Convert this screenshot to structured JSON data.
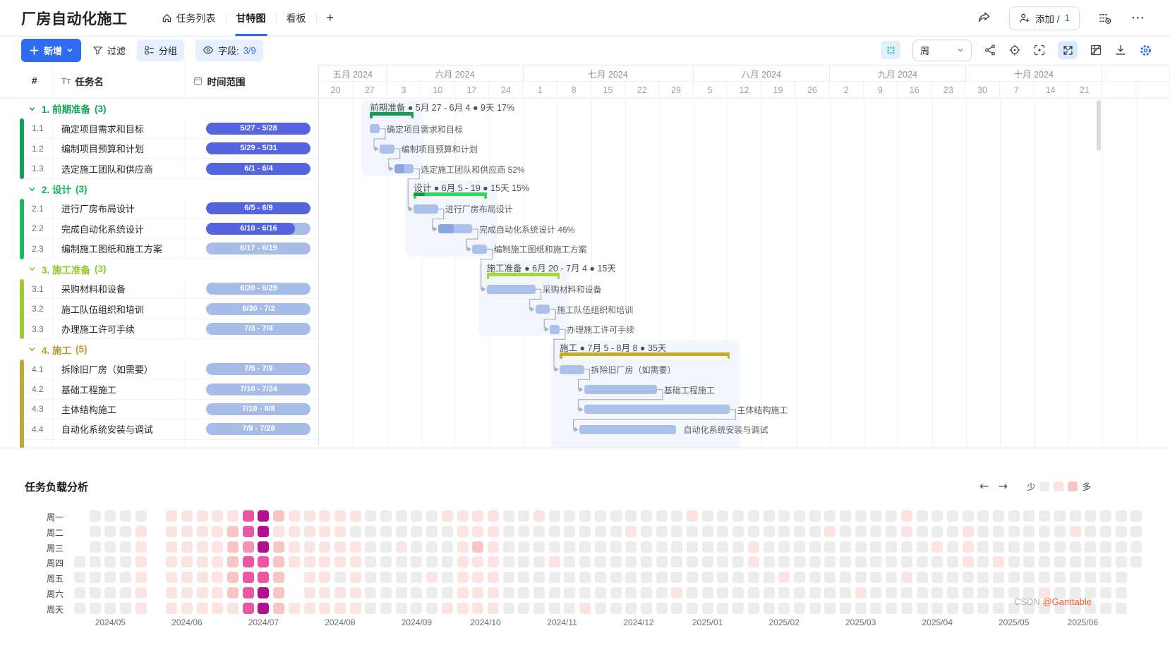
{
  "header": {
    "title": "厂房自动化施工",
    "tabs": [
      {
        "label": "任务列表"
      },
      {
        "label": "甘特图"
      },
      {
        "label": "看板"
      }
    ],
    "add_tab": "+",
    "invite_prefix": "添加 /",
    "invite_count": "1",
    "more": "⋯"
  },
  "toolbar": {
    "new_label": "新增",
    "filter_label": "过滤",
    "group_label": "分组",
    "fields_label": "字段:",
    "fields_value": "3/9",
    "view_value": "周"
  },
  "table": {
    "columns": [
      "#",
      "任务名",
      "时间范围"
    ]
  },
  "gantt": {
    "timeline": {
      "months": [
        {
          "label": "五月 2024",
          "weeks": [
            "20",
            "27"
          ]
        },
        {
          "label": "六月 2024",
          "weeks": [
            "3",
            "10",
            "17",
            "24"
          ]
        },
        {
          "label": "七月 2024",
          "weeks": [
            "1",
            "8",
            "15",
            "22",
            "29"
          ]
        },
        {
          "label": "八月 2024",
          "weeks": [
            "5",
            "12",
            "19",
            "26"
          ]
        },
        {
          "label": "九月 2024",
          "weeks": [
            "2",
            "9",
            "16",
            "23"
          ]
        },
        {
          "label": "十月 2024",
          "weeks": [
            "30",
            "7",
            "14",
            "21"
          ]
        },
        {
          "label": "",
          "weeks": [
            "",
            ""
          ]
        }
      ]
    },
    "groups": [
      {
        "num_name": "1. 前期准备",
        "count": "(3)",
        "title_color": "#11a155",
        "strip_color": "#0fa156",
        "bracket_color": "#0fa156",
        "bracket_head": "",
        "head_pct": 0,
        "summary_label": "前期准备 ● 5月 27 - 6月 4 ● 9天 17%",
        "start": 7,
        "end": 15,
        "extra_rows": 0,
        "rows": [
          {
            "id": "1.1",
            "name": "确定项目需求和目标",
            "range": "5/27 - 5/28",
            "pill_pct": 100,
            "start": 7,
            "end": 8,
            "progress": 0,
            "chart_label": "确定项目需求和目标"
          },
          {
            "id": "1.2",
            "name": "编制项目预算和计划",
            "range": "5/29 - 5/31",
            "pill_pct": 100,
            "start": 9,
            "end": 11,
            "progress": 0,
            "chart_label": "编制项目预算和计划"
          },
          {
            "id": "1.3",
            "name": "选定施工团队和供应商",
            "range": "6/1 - 6/4",
            "pill_pct": 100,
            "start": 12,
            "end": 15,
            "progress": 52,
            "chart_label": "选定施工团队和供应商 52%"
          }
        ]
      },
      {
        "num_name": "2. 设计",
        "count": "(3)",
        "title_color": "#12b457",
        "strip_color": "#16bb5b",
        "bracket_color": "#2bd957",
        "bracket_head": "#0b9e43",
        "head_pct": 15,
        "summary_label": "设计 ● 6月 5 - 19 ● 15天 15%",
        "start": 16,
        "end": 30,
        "extra_rows": 0,
        "rows": [
          {
            "id": "2.1",
            "name": "进行厂房布局设计",
            "range": "6/5 - 6/9",
            "pill_pct": 100,
            "start": 16,
            "end": 20,
            "progress": 0,
            "chart_label": "进行厂房布局设计"
          },
          {
            "id": "2.2",
            "name": "完成自动化系统设计",
            "range": "6/10 - 6/16",
            "pill_pct": 85,
            "start": 21,
            "end": 27,
            "progress": 46,
            "chart_label": "完成自动化系统设计 46%"
          },
          {
            "id": "2.3",
            "name": "编制施工图纸和施工方案",
            "range": "6/17 - 6/19",
            "pill_pct": 0,
            "start": 28,
            "end": 30,
            "progress": 0,
            "chart_label": "编制施工图纸和施工方案"
          }
        ]
      },
      {
        "num_name": "3. 施工准备",
        "count": "(3)",
        "title_color": "#8fc727",
        "strip_color": "#9ccb31",
        "bracket_color": "#a6d832",
        "bracket_head": "",
        "head_pct": 0,
        "summary_label": "施工准备 ● 6月 20 - 7月 4 ● 15天",
        "start": 31,
        "end": 45,
        "extra_rows": 0,
        "rows": [
          {
            "id": "3.1",
            "name": "采购材料和设备",
            "range": "6/20 - 6/29",
            "pill_pct": 0,
            "start": 31,
            "end": 40,
            "progress": 0,
            "chart_label": "采购材料和设备"
          },
          {
            "id": "3.2",
            "name": "施工队伍组织和培训",
            "range": "6/30 - 7/2",
            "pill_pct": 0,
            "start": 41,
            "end": 43,
            "progress": 0,
            "chart_label": "施工队伍组织和培训"
          },
          {
            "id": "3.3",
            "name": "办理施工许可手续",
            "range": "7/3 - 7/4",
            "pill_pct": 0,
            "start": 44,
            "end": 45,
            "progress": 0,
            "chart_label": "办理施工许可手续"
          }
        ]
      },
      {
        "num_name": "4. 施工",
        "count": "(5)",
        "title_color": "#b3992e",
        "strip_color": "#c0a739",
        "bracket_color": "#c9ac25",
        "bracket_head": "",
        "head_pct": 0,
        "summary_label": "施工 ● 7月 5 - 8月 8 ● 35天",
        "start": 46,
        "end": 80,
        "extra_rows": 1,
        "rows": [
          {
            "id": "4.1",
            "name": "拆除旧厂房（如需要）",
            "range": "7/5 - 7/9",
            "pill_pct": 0,
            "start": 46,
            "end": 50,
            "progress": 0,
            "chart_label": "拆除旧厂房（如需要）"
          },
          {
            "id": "4.2",
            "name": "基础工程施工",
            "range": "7/10 - 7/24",
            "pill_pct": 0,
            "start": 51,
            "end": 65,
            "progress": 0,
            "chart_label": "基础工程施工"
          },
          {
            "id": "4.3",
            "name": "主体结构施工",
            "range": "7/10 - 8/8",
            "pill_pct": 0,
            "start": 51,
            "end": 80,
            "progress": 0,
            "chart_label": "主体结构施工"
          },
          {
            "id": "4.4",
            "name": "自动化系统安装与调试",
            "range": "7/9 - 7/28",
            "pill_pct": 0,
            "start": 50,
            "end": 69,
            "progress": 0,
            "chart_label": "自动化系统安装与调试"
          }
        ]
      }
    ]
  },
  "load_panel": {
    "title": "任务负载分析",
    "legend_less": "少",
    "legend_more": "多",
    "legend_colors": [
      "#ececec",
      "#fce4e2",
      "#f9c5c4"
    ],
    "weekdays": [
      "周一",
      "周二",
      "周三",
      "周四",
      "周五",
      "周六",
      "周天"
    ],
    "months": [
      {
        "label": "2024/05",
        "col": 2
      },
      {
        "label": "2024/06",
        "col": 7
      },
      {
        "label": "2024/07",
        "col": 12
      },
      {
        "label": "2024/08",
        "col": 17
      },
      {
        "label": "2024/09",
        "col": 22
      },
      {
        "label": "2024/10",
        "col": 26.5
      },
      {
        "label": "2024/11",
        "col": 31.5
      },
      {
        "label": "2024/12",
        "col": 36.5
      },
      {
        "label": "2025/01",
        "col": 41
      },
      {
        "label": "2025/02",
        "col": 46
      },
      {
        "label": "2025/03",
        "col": 51
      },
      {
        "label": "2025/04",
        "col": 56
      },
      {
        "label": "2025/05",
        "col": 61
      },
      {
        "label": "2025/06",
        "col": 65.5
      }
    ],
    "palette": [
      "",
      "#ececec",
      "#fce4e2",
      "#f9c5c4",
      "#f693b5",
      "#ec57a2",
      "#b01190"
    ],
    "weeks": [
      "0001111",
      "1111111",
      "1111111",
      "1111111",
      "1222222",
      "0000000",
      "2222222",
      "2222222",
      "2222222",
      "2222222",
      "2333332",
      "5545555",
      "6665566",
      "3233333",
      "2222002",
      "2222222",
      "2222222",
      "2222122",
      "2122222",
      "1111111",
      "1111111",
      "1121111",
      "1111111",
      "1111211",
      "2111112",
      "2222222",
      "2232222",
      "2222222",
      "1111111",
      "1111111",
      "2111111",
      "1112111",
      "1111111",
      "1111112",
      "1111111",
      "1111111",
      "1211111",
      "1111111",
      "1111111",
      "1111121",
      "2111111",
      "1111111",
      "1111111",
      "1111111",
      "1122111",
      "1111111",
      "1111211",
      "1111111",
      "1111111",
      "1211111",
      "1111111",
      "1111121",
      "1111111",
      "1111111",
      "2211211",
      "1111111",
      "1121111",
      "1111111",
      "1222111",
      "1111111",
      "1112111",
      "1111111",
      "1111111",
      "1111121",
      "1111111",
      "1211111",
      "1111111",
      "1111111",
      "1111111",
      "1111000"
    ]
  },
  "watermark": {
    "grey": "CSDN ",
    "red": "@Ganttable"
  }
}
